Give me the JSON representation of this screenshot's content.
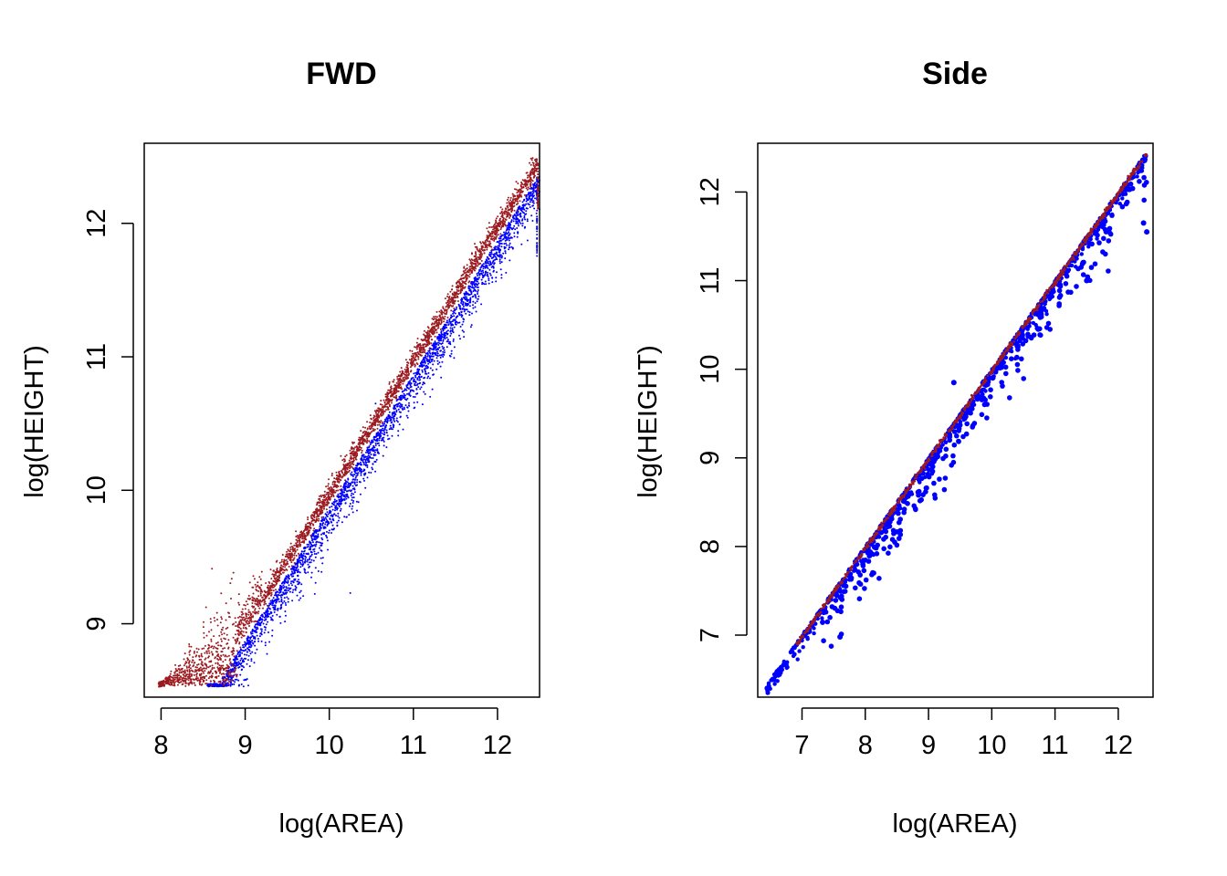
{
  "colors": {
    "red_series": "#9b1b20",
    "blue_series": "#0000ff",
    "axis": "#000000"
  },
  "chart_data": [
    {
      "type": "scatter",
      "title": "FWD",
      "xlabel": "log(AREA)",
      "ylabel": "log(HEIGHT)",
      "xlim": [
        7.8,
        12.5
      ],
      "ylim": [
        8.45,
        12.6
      ],
      "xticks": [
        "8",
        "9",
        "10",
        "11",
        "12"
      ],
      "yticks": [
        "9",
        "10",
        "11",
        "12"
      ],
      "grid": false,
      "legend": "none",
      "series": [
        {
          "color": "#0000ff",
          "description_points": "dense band below the diagonal",
          "x": [
            8.6,
            8.8,
            9.0,
            9.2,
            9.4,
            9.6,
            9.8,
            10.0,
            10.2,
            10.4,
            10.6,
            10.8,
            11.0,
            11.2,
            11.4,
            11.6,
            11.8,
            12.0,
            12.2,
            12.45,
            10.25,
            10.55,
            11.6,
            12.45
          ],
          "y": [
            8.53,
            8.62,
            8.75,
            8.92,
            9.08,
            9.25,
            9.42,
            9.6,
            9.77,
            9.95,
            10.12,
            10.3,
            10.47,
            10.65,
            10.82,
            11.0,
            11.17,
            11.35,
            11.52,
            11.75,
            9.23,
            10.65,
            11.15,
            12.3
          ]
        },
        {
          "color": "#9b1b20",
          "x": [
            8.0,
            8.3,
            8.6,
            8.9,
            9.2,
            9.5,
            9.8,
            10.1,
            10.4,
            10.7,
            11.0,
            11.3,
            11.6,
            11.9,
            12.2,
            12.45
          ],
          "y": [
            8.53,
            8.6,
            8.75,
            9.0,
            9.28,
            9.55,
            9.82,
            10.1,
            10.37,
            10.64,
            10.91,
            11.18,
            11.45,
            11.72,
            12.0,
            12.4
          ]
        }
      ]
    },
    {
      "type": "scatter",
      "title": "Side",
      "xlabel": "log(AREA)",
      "ylabel": "log(HEIGHT)",
      "xlim": [
        6.3,
        12.55
      ],
      "ylim": [
        6.3,
        12.55
      ],
      "xticks": [
        "7",
        "8",
        "9",
        "10",
        "11",
        "12"
      ],
      "yticks": [
        "7",
        "8",
        "9",
        "10",
        "11",
        "12"
      ],
      "grid": false,
      "legend": "none",
      "series": [
        {
          "color": "#0000ff",
          "x": [
            6.45,
            6.6,
            7.0,
            7.6,
            8.0,
            8.5,
            9.0,
            9.4,
            9.5,
            10.0,
            10.5,
            11.0,
            11.5,
            12.0,
            12.45
          ],
          "y": [
            6.4,
            6.55,
            6.95,
            7.0,
            7.9,
            8.4,
            8.9,
            9.85,
            9.35,
            9.9,
            10.4,
            10.9,
            11.4,
            11.9,
            11.55
          ]
        },
        {
          "color": "#9b1b20",
          "x": [
            7.0,
            7.5,
            8.0,
            8.5,
            9.0,
            9.5,
            10.0,
            10.5,
            11.0,
            11.5,
            12.0,
            12.45
          ],
          "y": [
            7.0,
            7.5,
            8.0,
            8.5,
            9.0,
            9.5,
            10.0,
            10.5,
            11.0,
            11.5,
            12.0,
            12.4
          ]
        }
      ]
    }
  ]
}
